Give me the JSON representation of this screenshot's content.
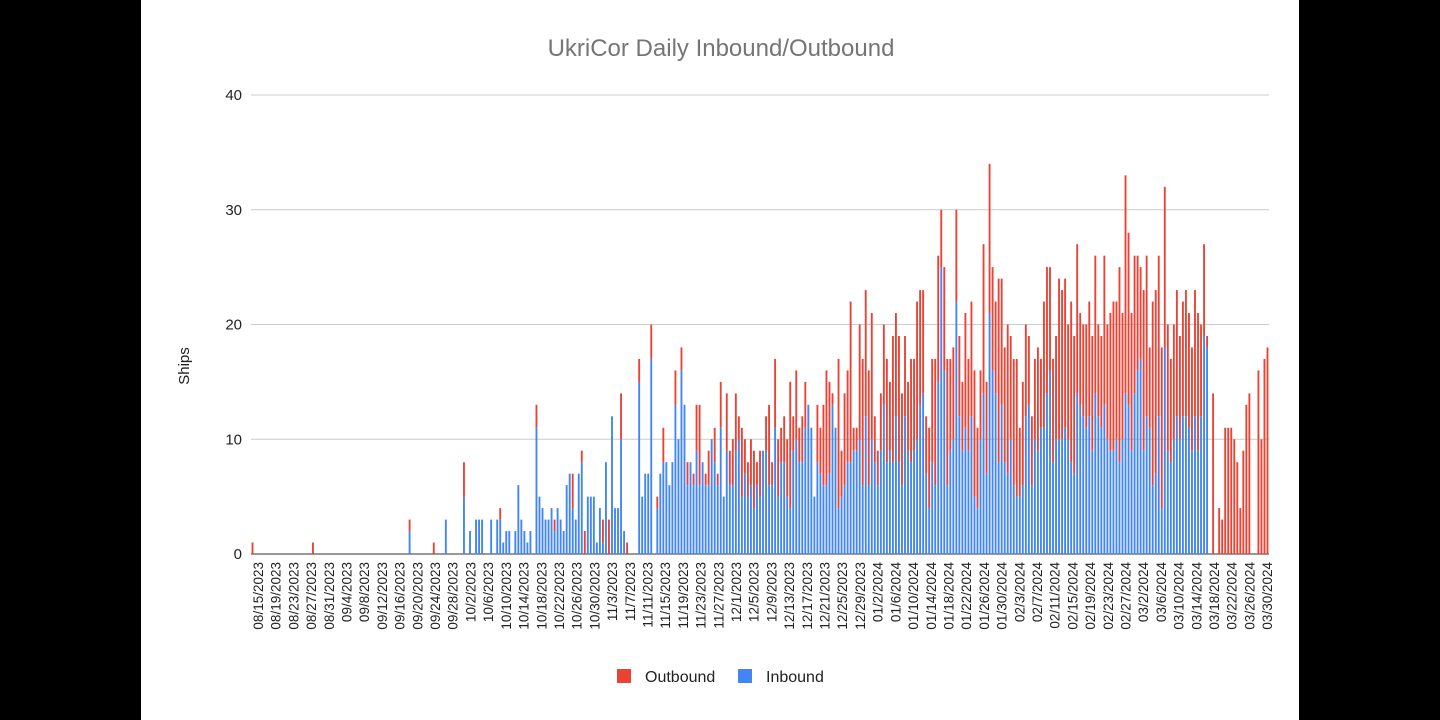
{
  "chart_data": {
    "type": "bar",
    "stacked": true,
    "title": "UkriCor Daily Inbound/Outbound",
    "xlabel": "",
    "ylabel": "Ships",
    "ylim": [
      0,
      40
    ],
    "yticks": [
      0,
      10,
      20,
      30,
      40
    ],
    "grid": true,
    "legend_position": "bottom",
    "x_tick_labels": [
      "08/15/2023",
      "08/19/2023",
      "08/23/2023",
      "08/27/2023",
      "08/31/2023",
      "09/4/2023",
      "09/8/2023",
      "09/12/2023",
      "09/16/2023",
      "09/20/2023",
      "09/24/2023",
      "09/28/2023",
      "10/2/2023",
      "10/6/2023",
      "10/10/2023",
      "10/14/2023",
      "10/18/2023",
      "10/22/2023",
      "10/26/2023",
      "10/30/2023",
      "11/3/2023",
      "11/7/2023",
      "11/11/2023",
      "11/15/2023",
      "11/19/2023",
      "11/23/2023",
      "11/27/2023",
      "12/1/2023",
      "12/5/2023",
      "12/9/2023",
      "12/13/2023",
      "12/17/2023",
      "12/21/2023",
      "12/25/2023",
      "12/29/2023",
      "01/2/2024",
      "01/6/2024",
      "01/10/2024",
      "01/14/2024",
      "01/18/2024",
      "01/22/2024",
      "01/26/2024",
      "01/30/2024",
      "02/3/2024",
      "02/7/2024",
      "02/11/2024",
      "02/15/2024",
      "02/19/2024",
      "02/23/2024",
      "02/27/2024",
      "03/2/2024",
      "03/6/2024",
      "03/10/2024",
      "03/14/2024",
      "03/18/2024",
      "03/22/2024",
      "03/26/2024",
      "03/30/2024"
    ],
    "series": [
      {
        "name": "Outbound",
        "color": "#ea4335",
        "values": [
          1,
          0,
          0,
          0,
          0,
          0,
          0,
          0,
          0,
          0,
          0,
          0,
          0,
          0,
          0,
          0,
          0,
          0,
          0,
          0,
          1,
          0,
          0,
          0,
          0,
          0,
          0,
          0,
          0,
          0,
          0,
          0,
          0,
          0,
          0,
          0,
          0,
          0,
          0,
          0,
          0,
          0,
          0,
          0,
          0,
          0,
          0,
          0,
          0,
          0,
          0,
          0,
          1,
          0,
          0,
          0,
          0,
          0,
          0,
          0,
          1,
          0,
          0,
          0,
          0,
          0,
          0,
          0,
          0,
          0,
          3,
          0,
          0,
          0,
          0,
          0,
          0,
          0,
          0,
          0,
          0,
          0,
          1,
          0,
          0,
          0,
          0,
          0,
          0,
          0,
          0,
          0,
          0,
          0,
          2,
          0,
          0,
          0,
          0,
          0,
          1,
          0,
          0,
          0,
          0,
          0,
          3,
          0,
          0,
          1,
          2,
          0,
          0,
          0,
          0,
          0,
          2,
          0,
          3,
          0,
          0,
          0,
          4,
          0,
          1,
          0,
          0,
          0,
          2,
          0,
          0,
          0,
          3,
          0,
          1,
          0,
          3,
          0,
          0,
          0,
          3,
          0,
          2,
          0,
          2,
          0,
          1,
          4,
          7,
          0,
          1,
          3,
          0,
          3,
          1,
          4,
          0,
          5,
          3,
          4,
          5,
          2,
          6,
          3,
          3,
          4,
          5,
          2,
          4,
          0,
          3,
          7,
          2,
          6,
          5,
          3,
          4,
          5,
          11,
          3,
          6,
          3,
          4,
          4,
          0,
          0,
          0,
          5,
          4,
          7,
          10,
          8,
          1,
          0,
          13,
          4,
          8,
          8,
          14,
          2,
          2,
          10,
          11,
          11,
          10,
          11,
          4,
          3,
          5,
          7,
          9,
          6,
          11,
          9,
          11,
          8,
          7,
          6,
          9,
          8,
          12,
          10,
          9,
          5,
          7,
          9,
          11,
          11,
          5,
          9,
          11,
          8,
          8,
          8,
          7,
          6,
          10,
          8,
          10,
          11,
          7,
          6,
          13,
          8,
          13,
          9,
          8,
          16,
          11,
          10,
          13,
          9,
          11,
          12,
          6,
          9,
          8,
          6,
          6,
          7,
          9,
          6,
          11,
          11,
          9,
          9,
          9,
          14,
          13,
          13,
          10,
          14,
          12,
          13,
          8,
          8,
          9,
          10,
          10,
          12,
          8,
          8,
          13,
          10,
          12,
          13,
          12,
          17,
          11,
          19,
          15,
          12,
          12,
          10,
          8,
          14,
          14,
          7,
          16,
          16,
          14,
          14,
          14,
          11,
          9,
          10,
          11,
          9,
          10,
          11,
          10,
          9,
          11,
          12,
          8,
          8,
          1,
          0,
          14,
          0,
          4,
          3,
          11,
          11,
          11,
          10,
          8,
          4,
          9,
          13,
          14,
          0,
          0,
          16,
          10,
          17,
          18
        ]
      },
      {
        "name": "Inbound",
        "color": "#4285f4",
        "values": [
          0,
          0,
          0,
          0,
          0,
          0,
          0,
          0,
          0,
          0,
          0,
          0,
          0,
          0,
          0,
          0,
          0,
          0,
          0,
          0,
          0,
          0,
          0,
          0,
          0,
          0,
          0,
          0,
          0,
          0,
          0,
          0,
          0,
          0,
          0,
          0,
          0,
          0,
          0,
          0,
          0,
          0,
          0,
          0,
          0,
          0,
          0,
          0,
          0,
          0,
          0,
          0,
          2,
          0,
          0,
          0,
          0,
          0,
          0,
          0,
          0,
          0,
          0,
          0,
          3,
          0,
          0,
          0,
          0,
          0,
          5,
          0,
          2,
          0,
          3,
          3,
          3,
          0,
          0,
          3,
          0,
          3,
          3,
          1,
          2,
          2,
          0,
          2,
          6,
          3,
          2,
          1,
          2,
          0,
          11,
          5,
          4,
          3,
          3,
          4,
          2,
          4,
          3,
          2,
          6,
          7,
          4,
          3,
          7,
          8,
          0,
          5,
          5,
          5,
          1,
          4,
          1,
          8,
          0,
          12,
          4,
          4,
          10,
          2,
          0,
          0,
          0,
          0,
          15,
          5,
          7,
          7,
          17,
          0,
          4,
          7,
          8,
          8,
          6,
          8,
          13,
          10,
          16,
          13,
          6,
          8,
          6,
          9,
          6,
          8,
          6,
          6,
          10,
          8,
          6,
          11,
          5,
          9,
          6,
          6,
          9,
          10,
          5,
          7,
          5,
          6,
          4,
          6,
          5,
          9,
          9,
          6,
          6,
          11,
          5,
          8,
          8,
          5,
          4,
          9,
          10,
          8,
          8,
          11,
          13,
          11,
          5,
          8,
          7,
          6,
          6,
          7,
          13,
          11,
          4,
          5,
          6,
          8,
          8,
          9,
          9,
          10,
          6,
          12,
          6,
          10,
          8,
          6,
          9,
          13,
          8,
          9,
          8,
          12,
          8,
          6,
          12,
          9,
          8,
          9,
          10,
          13,
          14,
          7,
          4,
          8,
          6,
          15,
          25,
          16,
          6,
          9,
          10,
          22,
          12,
          9,
          11,
          9,
          12,
          5,
          4,
          10,
          14,
          7,
          21,
          16,
          14,
          8,
          13,
          8,
          7,
          10,
          6,
          5,
          5,
          6,
          12,
          13,
          6,
          10,
          9,
          11,
          11,
          14,
          16,
          8,
          10,
          10,
          10,
          11,
          10,
          8,
          7,
          14,
          13,
          12,
          11,
          12,
          9,
          14,
          12,
          11,
          13,
          10,
          9,
          9,
          10,
          8,
          10,
          14,
          13,
          9,
          14,
          16,
          17,
          9,
          12,
          11,
          6,
          7,
          12,
          4,
          18,
          9,
          8,
          10,
          12,
          10,
          12,
          12,
          11,
          9,
          12,
          9,
          12,
          19,
          18
        ]
      }
    ],
    "legend": [
      "Outbound",
      "Inbound"
    ]
  },
  "legend_colors": {
    "Outbound": "#ea4335",
    "Inbound": "#4285f4"
  }
}
